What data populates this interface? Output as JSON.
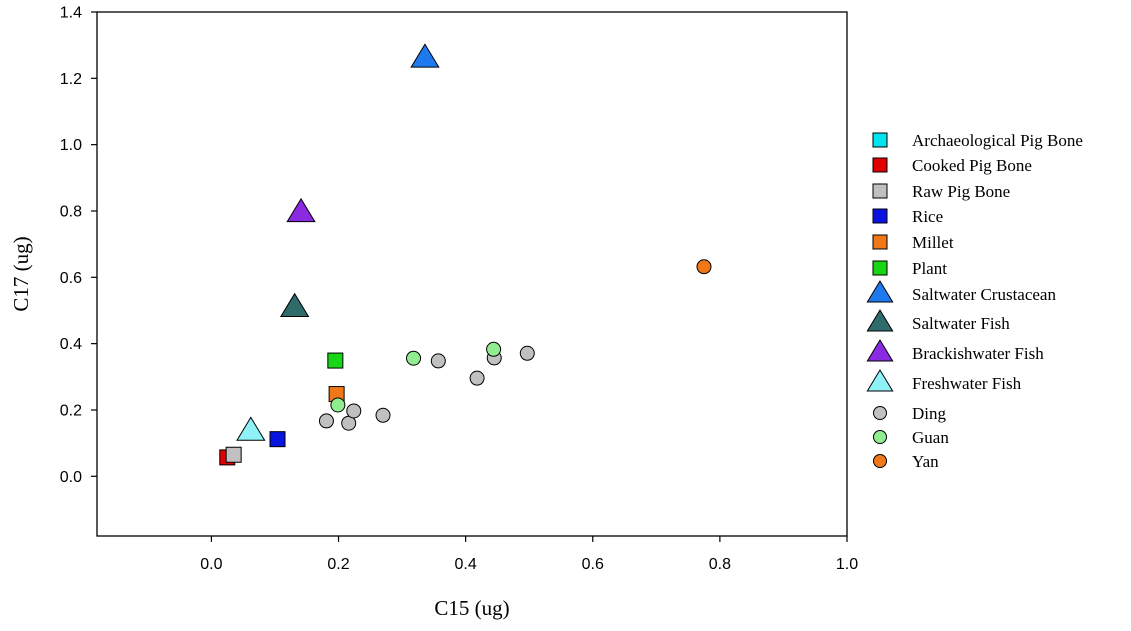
{
  "chart_data": {
    "type": "scatter",
    "xlabel": "C15 (ug)",
    "ylabel": "C17 (ug)",
    "xlim": [
      -0.18,
      1.0
    ],
    "ylim": [
      -0.18,
      1.4
    ],
    "xticks": [
      "0.0",
      "0.2",
      "0.4",
      "0.6",
      "0.8",
      "1.0"
    ],
    "xtick_values": [
      0.0,
      0.2,
      0.4,
      0.6,
      0.8,
      1.0
    ],
    "yticks": [
      "0.0",
      "0.2",
      "0.4",
      "0.6",
      "0.8",
      "1.0",
      "1.2",
      "1.4"
    ],
    "ytick_values": [
      0.0,
      0.2,
      0.4,
      0.6,
      0.8,
      1.0,
      1.2,
      1.4
    ],
    "grid": false,
    "legend_position": "right",
    "series": [
      {
        "name": "Archaeological Pig Bone",
        "marker": "square",
        "color": "#00e5ee",
        "points": []
      },
      {
        "name": "Cooked Pig Bone",
        "marker": "square",
        "color": "#e00000",
        "points": [
          [
            0.025,
            0.057
          ]
        ]
      },
      {
        "name": "Raw Pig Bone",
        "marker": "square",
        "color": "#c0c0c0",
        "points": [
          [
            0.035,
            0.065
          ]
        ]
      },
      {
        "name": "Rice",
        "marker": "square",
        "color": "#0a14e0",
        "points": [
          [
            0.104,
            0.112
          ]
        ]
      },
      {
        "name": "Millet",
        "marker": "square",
        "color": "#f07818",
        "points": [
          [
            0.197,
            0.248
          ]
        ]
      },
      {
        "name": "Plant",
        "marker": "square",
        "color": "#16d616",
        "points": [
          [
            0.195,
            0.349
          ]
        ]
      },
      {
        "name": "Saltwater Crustacean",
        "marker": "triangle",
        "color": "#1e78ee",
        "points": [
          [
            0.336,
            1.26
          ]
        ]
      },
      {
        "name": "Saltwater Fish",
        "marker": "triangle",
        "color": "#2f6b6b",
        "points": [
          [
            0.131,
            0.508
          ]
        ]
      },
      {
        "name": "Brackishwater Fish",
        "marker": "triangle",
        "color": "#8a2be2",
        "points": [
          [
            0.141,
            0.794
          ]
        ]
      },
      {
        "name": "Freshwater Fish",
        "marker": "triangle",
        "color": "#8ff2f7",
        "points": [
          [
            0.062,
            0.135
          ]
        ]
      },
      {
        "name": "Ding",
        "marker": "circle",
        "color": "#c0c0c0",
        "points": [
          [
            0.181,
            0.167
          ],
          [
            0.216,
            0.16
          ],
          [
            0.224,
            0.197
          ],
          [
            0.27,
            0.184
          ],
          [
            0.357,
            0.348
          ],
          [
            0.418,
            0.296
          ],
          [
            0.445,
            0.357
          ],
          [
            0.497,
            0.371
          ]
        ]
      },
      {
        "name": "Guan",
        "marker": "circle",
        "color": "#90ee90",
        "points": [
          [
            0.199,
            0.215
          ],
          [
            0.318,
            0.356
          ],
          [
            0.444,
            0.383
          ]
        ]
      },
      {
        "name": "Yan",
        "marker": "circle",
        "color": "#f07818",
        "points": [
          [
            0.775,
            0.632
          ]
        ]
      }
    ]
  }
}
